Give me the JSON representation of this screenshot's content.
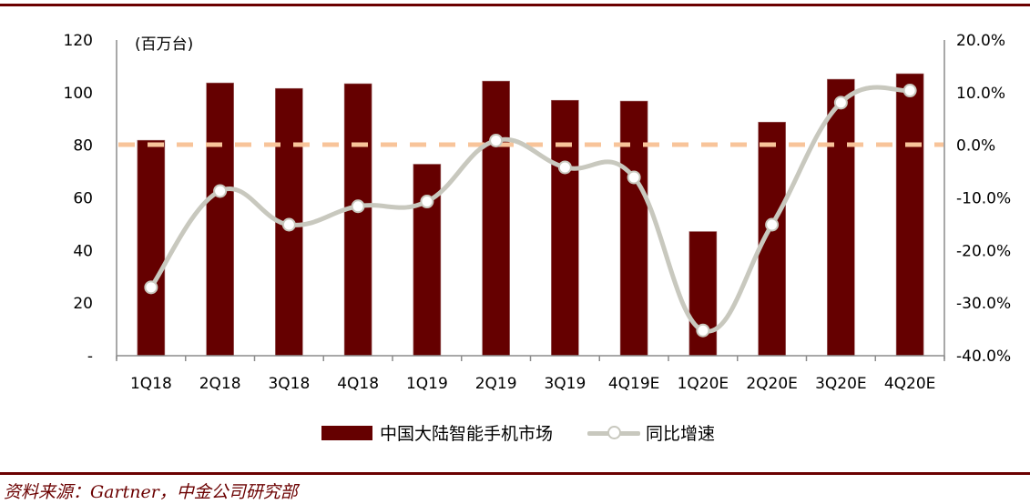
{
  "chart_data": {
    "type": "bar+line",
    "title": "",
    "unit_label": "(百万台)",
    "categories": [
      "1Q18",
      "2Q18",
      "3Q18",
      "4Q18",
      "1Q19",
      "2Q19",
      "3Q19",
      "4Q19E",
      "1Q20E",
      "2Q20E",
      "3Q20E",
      "4Q20E"
    ],
    "series": [
      {
        "name": "中国大陆智能手机市场",
        "type": "bar",
        "axis": "left",
        "color": "#650000",
        "values": [
          81.9,
          103.7,
          101.6,
          103.4,
          72.8,
          104.4,
          97.1,
          96.8,
          47.2,
          88.8,
          105.1,
          107.2
        ]
      },
      {
        "name": "同比增速",
        "type": "line",
        "axis": "right",
        "color": "#c8c8be",
        "marker": "hollow-circle",
        "smooth": true,
        "values": [
          -27.0,
          -8.7,
          -15.1,
          -11.6,
          -10.7,
          0.9,
          -4.2,
          -6.1,
          -35.2,
          -15.1,
          8.1,
          10.4
        ]
      }
    ],
    "left_axis": {
      "ylim": [
        0,
        120
      ],
      "ticks": [
        "-",
        "20",
        "40",
        "60",
        "80",
        "100",
        "120"
      ]
    },
    "right_axis": {
      "ylim": [
        -40,
        20
      ],
      "ticks": [
        "-40.0%",
        "-30.0%",
        "-20.0%",
        "-10.0%",
        "0.0%",
        "10.0%",
        "20.0%"
      ]
    },
    "reference_line": {
      "axis": "right",
      "value": 0,
      "style": "dashed",
      "color": "#f8c49a"
    },
    "xlabel": "",
    "ylabel": "",
    "grid": false,
    "legend_position": "bottom"
  },
  "legend": {
    "bar_label": "中国大陆智能手机市场",
    "line_label": "同比增速"
  },
  "source": "资料来源：Gartner，中金公司研究部"
}
